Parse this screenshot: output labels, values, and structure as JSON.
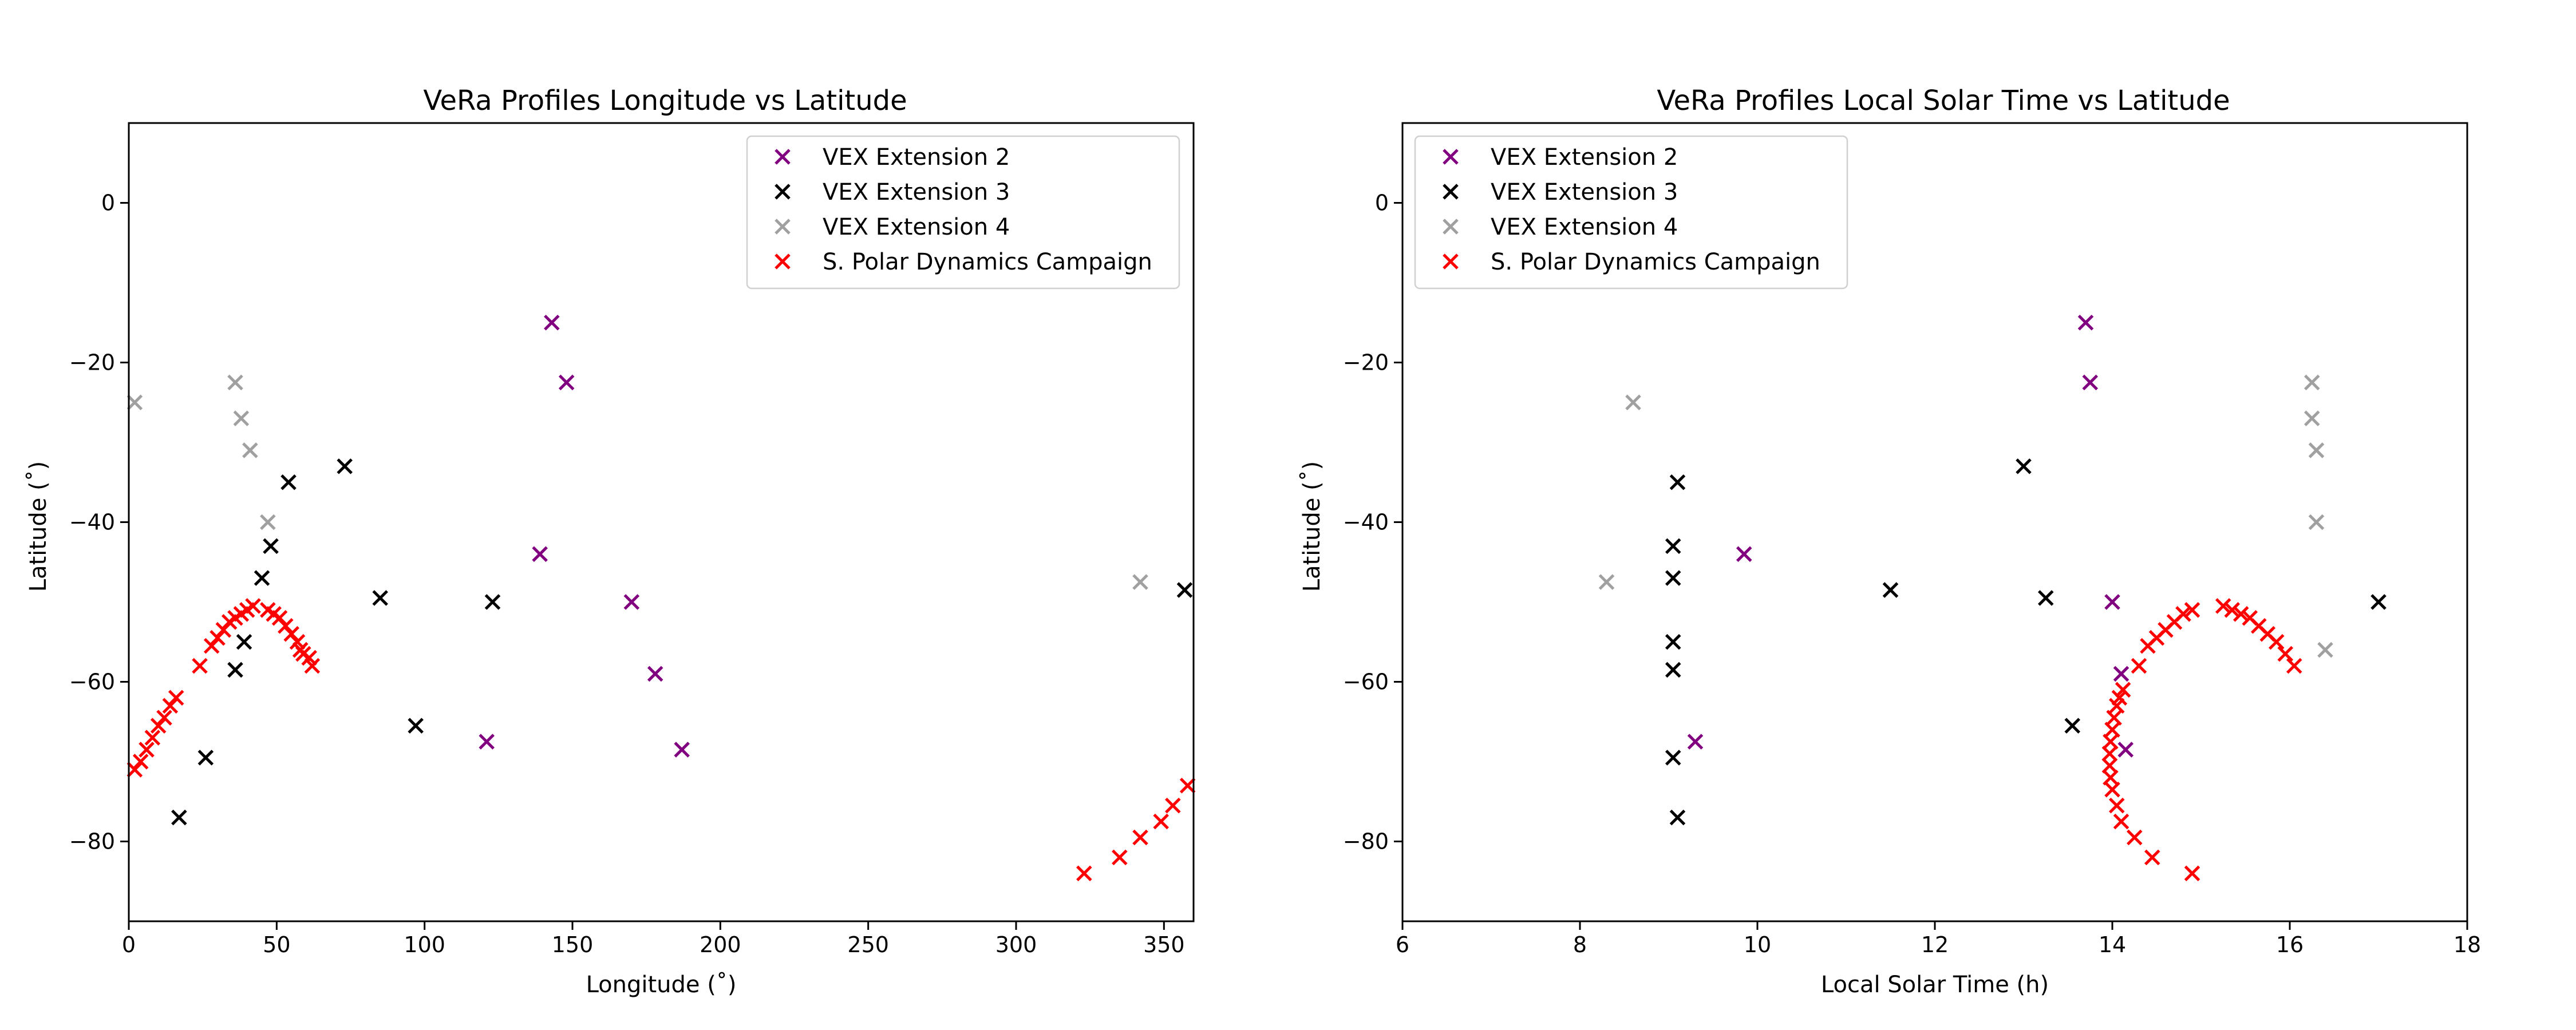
{
  "chart_data": [
    {
      "type": "scatter",
      "title": "VeRa Profiles Longitude vs Latitude",
      "xlabel": "Longitude (˚)",
      "ylabel": "Latitude (˚)",
      "xlim": [
        0,
        360
      ],
      "ylim": [
        -90,
        10
      ],
      "xticks": [
        0,
        50,
        100,
        150,
        200,
        250,
        300,
        350
      ],
      "yticks": [
        0,
        -20,
        -40,
        -60,
        -80
      ],
      "grid": false,
      "legend_position": "top-right",
      "series": [
        {
          "name": "VEX Extension 2",
          "color": "#800080",
          "marker": "x",
          "x": [
            143,
            148,
            139,
            170,
            178,
            121,
            187
          ],
          "y": [
            -15,
            -22.5,
            -44,
            -50,
            -59,
            -67.5,
            -68.5
          ]
        },
        {
          "name": "VEX Extension 3",
          "color": "#000000",
          "marker": "x",
          "x": [
            54,
            73,
            48,
            45,
            85,
            123,
            39,
            36,
            97,
            26,
            17,
            357
          ],
          "y": [
            -35,
            -33,
            -43,
            -47,
            -49.5,
            -50,
            -55,
            -58.5,
            -65.5,
            -69.5,
            -77,
            -48.5
          ]
        },
        {
          "name": "VEX Extension 4",
          "color": "#A0A0A0",
          "marker": "x",
          "x": [
            2,
            36,
            38,
            41,
            47,
            342,
            58
          ],
          "y": [
            -25,
            -22.5,
            -27,
            -31,
            -40,
            -47.5,
            -56
          ]
        },
        {
          "name": "S. Polar Dynamics Campaign",
          "color": "#FF0000",
          "marker": "x",
          "x": [
            2,
            4,
            6,
            8,
            10,
            12,
            14,
            16,
            24,
            28,
            30,
            32,
            34,
            36,
            38,
            40,
            42,
            47,
            49,
            51,
            53,
            55,
            57,
            58,
            59,
            61,
            62,
            323,
            335,
            342,
            349,
            353,
            358
          ],
          "y": [
            -71,
            -70,
            -68.5,
            -67,
            -65.5,
            -64.5,
            -63,
            -62,
            -58,
            -55.5,
            -54.5,
            -53.5,
            -52.5,
            -52,
            -51.5,
            -51,
            -50.5,
            -51,
            -51.5,
            -52,
            -53,
            -54,
            -55,
            -56,
            -56.5,
            -57,
            -58,
            -84,
            -82,
            -79.5,
            -77.5,
            -75.5,
            -73
          ]
        }
      ]
    },
    {
      "type": "scatter",
      "title": "VeRa Profiles Local Solar Time vs Latitude",
      "xlabel": "Local Solar Time (h)",
      "ylabel": "Latitude (˚)",
      "xlim": [
        6,
        18
      ],
      "ylim": [
        -90,
        10
      ],
      "xticks": [
        6,
        8,
        10,
        12,
        14,
        16,
        18
      ],
      "yticks": [
        0,
        -20,
        -40,
        -60,
        -80
      ],
      "grid": false,
      "legend_position": "top-left",
      "series": [
        {
          "name": "VEX Extension 2",
          "color": "#800080",
          "marker": "x",
          "x": [
            13.7,
            13.75,
            9.85,
            14.0,
            14.1,
            9.3,
            14.15
          ],
          "y": [
            -15,
            -22.5,
            -44,
            -50,
            -59,
            -67.5,
            -68.5
          ]
        },
        {
          "name": "VEX Extension 3",
          "color": "#000000",
          "marker": "x",
          "x": [
            9.1,
            13.0,
            9.05,
            9.05,
            11.5,
            13.25,
            9.05,
            9.05,
            13.55,
            9.05,
            9.1,
            17.0
          ],
          "y": [
            -35,
            -33,
            -43,
            -47,
            -48.5,
            -49.5,
            -55,
            -58.5,
            -65.5,
            -69.5,
            -77,
            -50
          ]
        },
        {
          "name": "VEX Extension 4",
          "color": "#A0A0A0",
          "marker": "x",
          "x": [
            8.6,
            16.25,
            16.25,
            16.3,
            16.3,
            8.3,
            16.4
          ],
          "y": [
            -25,
            -22.5,
            -27,
            -31,
            -40,
            -47.5,
            -56
          ]
        },
        {
          "name": "S. Polar Dynamics Campaign",
          "color": "#FF0000",
          "marker": "x",
          "x": [
            14.9,
            14.45,
            14.25,
            14.1,
            14.05,
            14.0,
            13.98,
            13.97,
            13.97,
            13.98,
            14.0,
            14.02,
            14.05,
            14.08,
            14.12,
            14.3,
            14.4,
            14.5,
            14.6,
            14.7,
            14.8,
            14.9,
            15.25,
            15.35,
            15.45,
            15.55,
            15.65,
            15.75,
            15.85,
            15.95,
            16.05
          ],
          "y": [
            -84,
            -82,
            -79.5,
            -77.5,
            -75.5,
            -73.5,
            -72,
            -70.5,
            -69,
            -67.5,
            -66,
            -64.5,
            -63,
            -62,
            -61,
            -58,
            -55.5,
            -54.5,
            -53.5,
            -52.5,
            -51.5,
            -51,
            -50.5,
            -51,
            -51.5,
            -52,
            -53,
            -54,
            -55,
            -56.5,
            -58
          ]
        }
      ]
    }
  ]
}
